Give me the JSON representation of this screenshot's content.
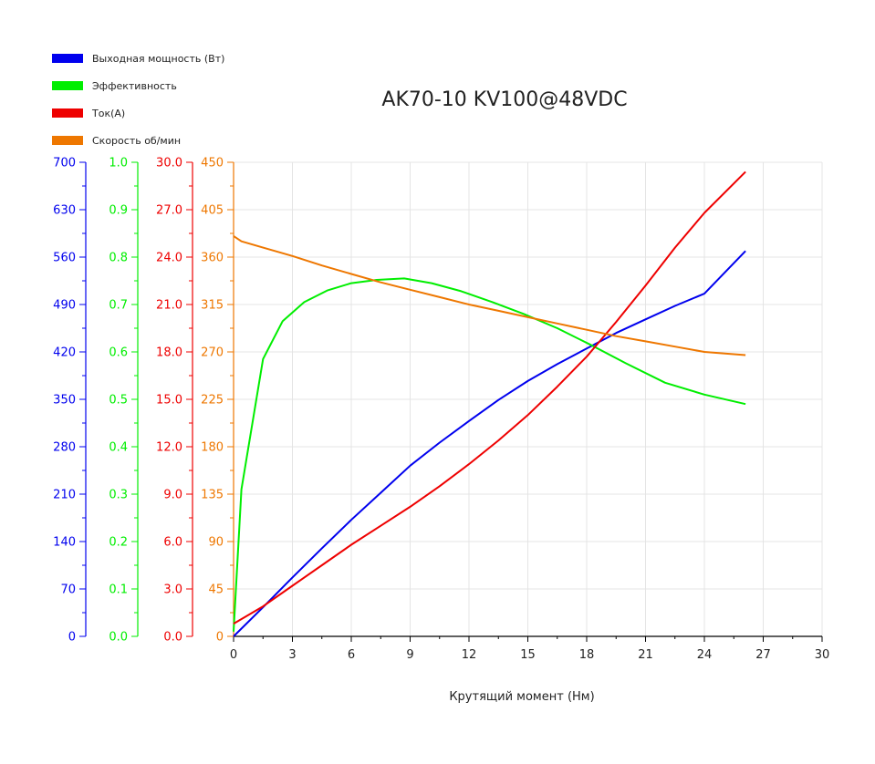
{
  "chart_data": {
    "type": "line",
    "title": "AK70-10 KV100@48VDC",
    "xlabel": "Крутящий момент (Нм)",
    "xlim": [
      0,
      30
    ],
    "xticks": [
      0,
      3,
      6,
      9,
      12,
      15,
      18,
      21,
      24,
      27,
      30
    ],
    "grid": true,
    "legend_position": "top-left",
    "axes": [
      {
        "id": "power",
        "color": "#0000ee",
        "ylim": [
          0,
          700
        ],
        "ticks": [
          "0",
          "70",
          "140",
          "210",
          "280",
          "350",
          "420",
          "490",
          "560",
          "630",
          "700"
        ]
      },
      {
        "id": "eff",
        "color": "#00ee00",
        "ylim": [
          0,
          1.0
        ],
        "ticks": [
          "0.0",
          "0.1",
          "0.2",
          "0.3",
          "0.4",
          "0.5",
          "0.6",
          "0.7",
          "0.8",
          "0.9",
          "1.0"
        ]
      },
      {
        "id": "current",
        "color": "#ee0000",
        "ylim": [
          0,
          30
        ],
        "ticks": [
          "0.0",
          "3.0",
          "6.0",
          "9.0",
          "12.0",
          "15.0",
          "18.0",
          "21.0",
          "24.0",
          "27.0",
          "30.0"
        ]
      },
      {
        "id": "speed",
        "color": "#ee7700",
        "ylim": [
          0,
          450
        ],
        "ticks": [
          "0",
          "45",
          "90",
          "135",
          "180",
          "225",
          "270",
          "315",
          "360",
          "405",
          "450"
        ]
      }
    ],
    "series": [
      {
        "name": "Выходная мощность (Вт)",
        "axis": "power",
        "color": "#0000ee",
        "x": [
          0,
          1.5,
          3,
          4.5,
          6,
          7.5,
          9,
          10.5,
          12,
          13.5,
          15,
          16.5,
          18,
          19.5,
          21,
          22.5,
          24,
          26.1
        ],
        "y": [
          0,
          43,
          87,
          130,
          172,
          212,
          252,
          286,
          318,
          349,
          377,
          402,
          425,
          448,
          468,
          488,
          506,
          569
        ]
      },
      {
        "name": "Эффективность",
        "axis": "eff",
        "color": "#00ee00",
        "x": [
          0,
          0.4,
          1.5,
          2.5,
          3.6,
          4.8,
          6,
          7.3,
          8.7,
          10.1,
          11.6,
          13.2,
          14.8,
          16.5,
          18.2,
          20,
          22,
          24,
          26.1
        ],
        "y": [
          0.01,
          0.31,
          0.585,
          0.665,
          0.705,
          0.73,
          0.745,
          0.752,
          0.755,
          0.745,
          0.728,
          0.705,
          0.68,
          0.65,
          0.615,
          0.576,
          0.535,
          0.51,
          0.49
        ]
      },
      {
        "name": "Ток(А)",
        "axis": "current",
        "color": "#ee0000",
        "x": [
          0,
          1.5,
          3,
          4.5,
          6,
          7.5,
          9,
          10.5,
          12,
          13.5,
          15,
          16.5,
          18,
          19.5,
          21,
          22.5,
          24,
          26.1
        ],
        "y": [
          0.8,
          1.9,
          3.2,
          4.5,
          5.8,
          7.0,
          8.2,
          9.5,
          10.9,
          12.4,
          14.0,
          15.8,
          17.7,
          19.9,
          22.2,
          24.6,
          26.8,
          29.4
        ],
        "note_hidden": ""
      },
      {
        "name": "Скорость об/мин",
        "axis": "speed",
        "color": "#ee7700",
        "x": [
          0,
          0.4,
          1.5,
          3,
          4.5,
          6,
          7.5,
          9,
          10.5,
          12,
          13.5,
          15,
          16.5,
          18,
          19.5,
          21,
          22.5,
          24,
          26.1
        ],
        "y": [
          380,
          375,
          369,
          361,
          352,
          344,
          336,
          329,
          322,
          315,
          309,
          303,
          297,
          291,
          285,
          280,
          275,
          270,
          267
        ]
      }
    ]
  }
}
